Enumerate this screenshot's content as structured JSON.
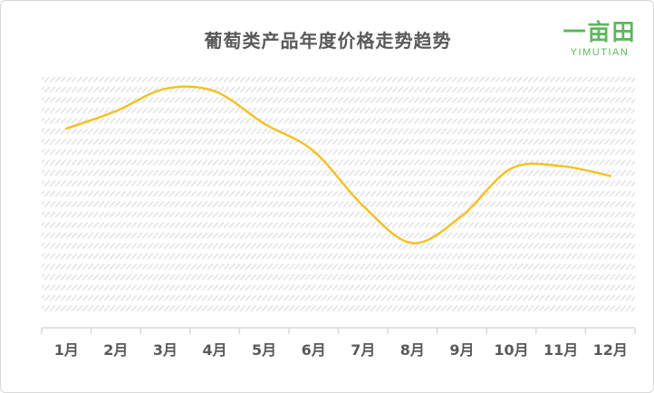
{
  "chart_data": {
    "type": "line",
    "title": "葡萄类产品年度价格走势趋势",
    "categories": [
      "1月",
      "2月",
      "3月",
      "4月",
      "5月",
      "6月",
      "7月",
      "8月",
      "9月",
      "10月",
      "11月",
      "12月"
    ],
    "series": [
      {
        "values": [
          0.8,
          0.87,
          0.96,
          0.95,
          0.82,
          0.71,
          0.49,
          0.34,
          0.45,
          0.64,
          0.65,
          0.61
        ],
        "color": "#f5c01f"
      }
    ],
    "xlabel": "",
    "ylabel": "",
    "ylim": [
      0,
      1
    ],
    "y_axis_labels_shown": false,
    "grid": false,
    "legend": "none",
    "smooth": true,
    "plot_background": "diagonal-hatch"
  },
  "logo": {
    "mark": "一亩田",
    "text": "YIMUTIAN",
    "color": "#5cb85c"
  },
  "colors": {
    "title": "#595959",
    "tick_label": "#595959",
    "axis": "#d9d9d9",
    "hatch": "#e4e4e4"
  }
}
